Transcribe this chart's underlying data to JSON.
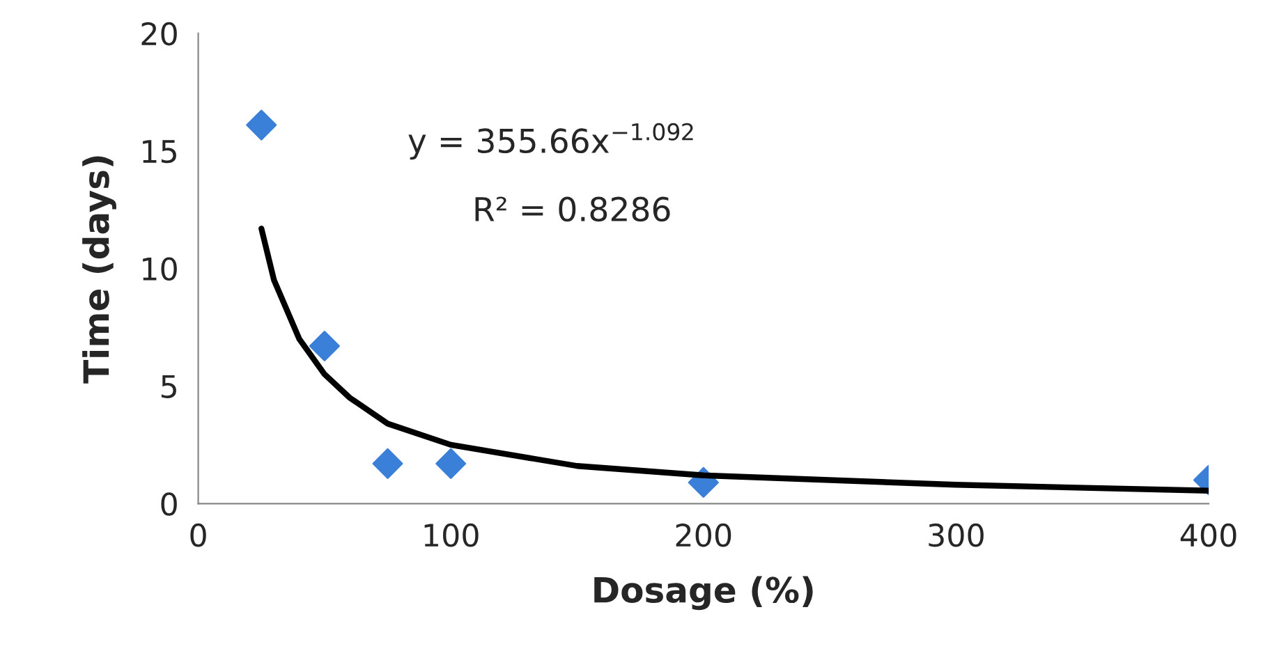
{
  "chart_data": {
    "type": "scatter",
    "xlabel": "Dosage (%)",
    "ylabel": "Time (days)",
    "xlim": [
      0,
      400
    ],
    "xticks": [
      0,
      100,
      200,
      300,
      400
    ],
    "ylim": [
      0,
      20
    ],
    "yticks": [
      0,
      5,
      10,
      15,
      20
    ],
    "grid": false,
    "series": [
      {
        "marker": "diamond",
        "color": "#3a7fd8",
        "x": [
          25,
          50,
          75,
          100,
          200,
          400
        ],
        "values": [
          16.1,
          6.7,
          1.7,
          1.7,
          0.9,
          1.0
        ]
      },
      {
        "type": "line",
        "marker": "none",
        "color": "#000000",
        "x": [
          25,
          30,
          40,
          50,
          60,
          75,
          100,
          150,
          200,
          300,
          400
        ],
        "values": [
          11.7,
          9.5,
          7.0,
          5.5,
          4.5,
          3.4,
          2.5,
          1.6,
          1.2,
          0.8,
          0.55
        ]
      }
    ],
    "annotations": [
      {
        "text": "y = 355.66x$^{−1.092}$"
      },
      {
        "text": "R² = 0.8286"
      }
    ]
  }
}
